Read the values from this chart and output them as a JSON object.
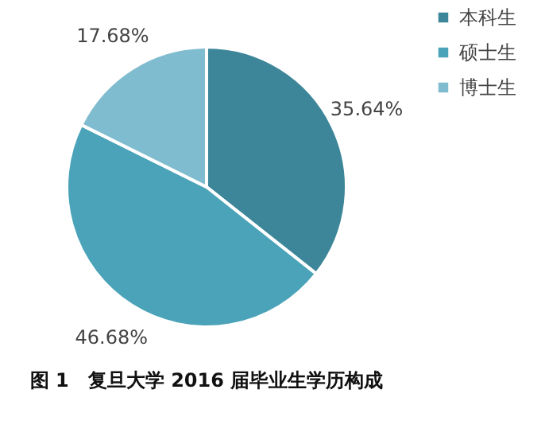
{
  "chart_data": {
    "type": "pie",
    "title": "图 1　复旦大学 2016 届毕业生学历构成",
    "categories": [
      "本科生",
      "硕士生",
      "博士生"
    ],
    "values": [
      35.64,
      46.68,
      17.68
    ],
    "colors": [
      "#3d8699",
      "#4aa3b8",
      "#80bccf"
    ],
    "value_labels": [
      "35.64%",
      "46.68%",
      "17.68%"
    ],
    "legend": "right"
  }
}
